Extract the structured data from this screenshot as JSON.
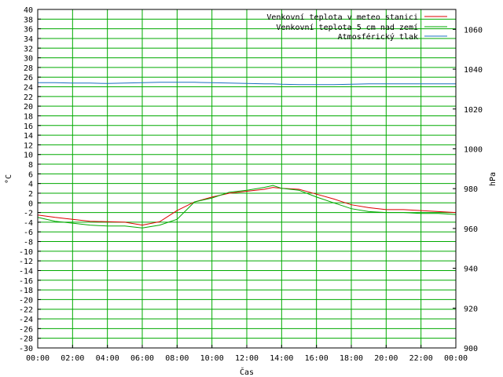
{
  "chart_data": {
    "type": "line",
    "xlabel": "Čas",
    "ylabel": "°C",
    "y2label": "hPa",
    "x_ticks": [
      "00:00",
      "02:00",
      "04:00",
      "06:00",
      "08:00",
      "10:00",
      "12:00",
      "14:00",
      "16:00",
      "18:00",
      "20:00",
      "22:00",
      "00:00"
    ],
    "xlim_hours": [
      0,
      24
    ],
    "ylim": [
      -30,
      40
    ],
    "y_step": 2,
    "y2lim": [
      900,
      1070
    ],
    "y2_ticks": [
      900,
      920,
      940,
      960,
      980,
      1000,
      1020,
      1040,
      1060
    ],
    "grid": true,
    "legend_position": "top-right",
    "x_hours": [
      0,
      1,
      2,
      3,
      4,
      5,
      6,
      7,
      8,
      9,
      10,
      11,
      12,
      13,
      13.5,
      14,
      15,
      16,
      17,
      18,
      19,
      20,
      21,
      22,
      23,
      24
    ],
    "series": [
      {
        "name": "Venkovní teplota v meteo stanici",
        "color": "#dd0000",
        "axis": "left",
        "values": [
          -2.5,
          -3.0,
          -3.4,
          -3.8,
          -3.9,
          -4.0,
          -4.6,
          -3.9,
          -1.6,
          0.2,
          1.2,
          2.0,
          2.4,
          2.8,
          3.2,
          3.0,
          2.8,
          1.8,
          0.8,
          -0.4,
          -1.0,
          -1.4,
          -1.4,
          -1.6,
          -1.8,
          -2.0
        ]
      },
      {
        "name": "Venkovní teplota 5 cm nad zemí",
        "color": "#00aa00",
        "axis": "left",
        "values": [
          -3.0,
          -3.8,
          -4.2,
          -4.6,
          -4.8,
          -4.8,
          -5.2,
          -4.6,
          -3.4,
          0.2,
          1.0,
          2.2,
          2.6,
          3.2,
          3.6,
          3.0,
          2.6,
          1.2,
          0.0,
          -1.2,
          -1.8,
          -2.0,
          -2.0,
          -2.2,
          -2.2,
          -2.4
        ]
      },
      {
        "name": "Atmosférický tlak",
        "color": "#1a70c0",
        "axis": "right",
        "values": [
          1033.2,
          1033.2,
          1033.0,
          1033.0,
          1032.8,
          1033.0,
          1033.2,
          1033.4,
          1033.4,
          1033.4,
          1033.2,
          1033.0,
          1032.8,
          1032.6,
          1032.6,
          1032.4,
          1032.2,
          1032.2,
          1032.2,
          1032.4,
          1032.6,
          1032.6,
          1032.6,
          1032.6,
          1032.6,
          1032.6
        ]
      }
    ]
  }
}
